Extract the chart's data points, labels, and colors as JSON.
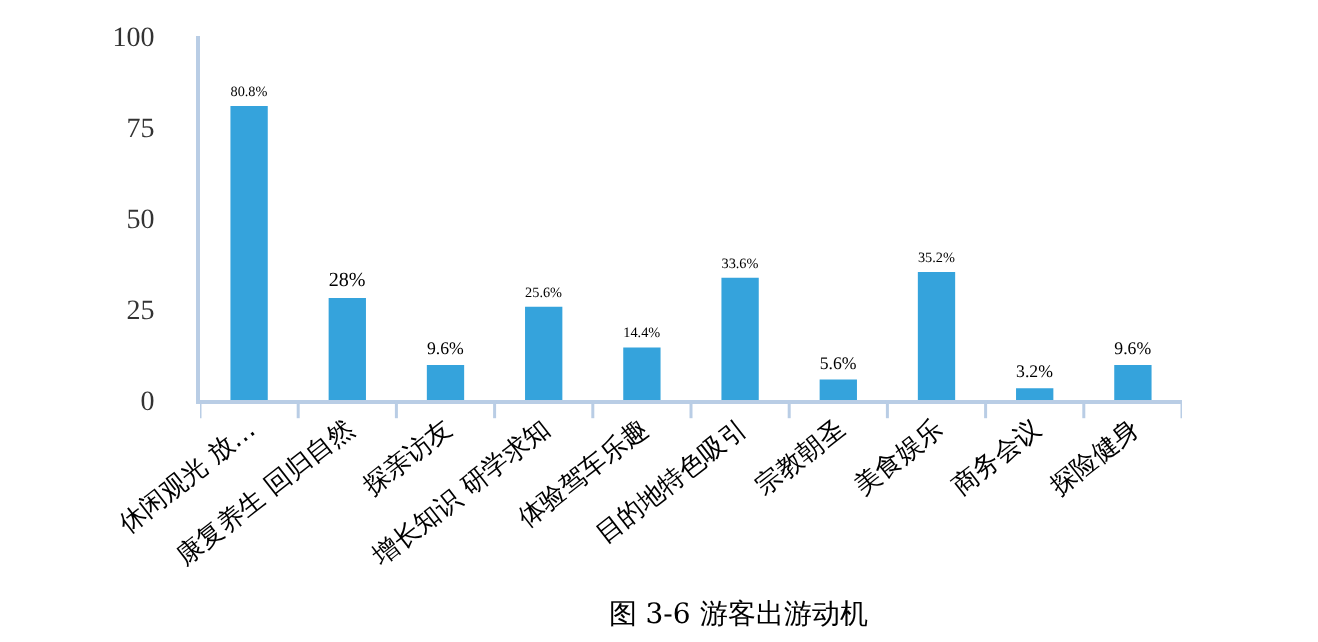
{
  "chart_data": {
    "type": "bar",
    "title": "图 3-6 游客出游动机",
    "categories": [
      "休闲观光 放…",
      "康复养生 回归自然",
      "探亲访友",
      "增长知识 研学求知",
      "体验驾车乐趣",
      "目的地特色吸引",
      "宗教朝圣",
      "美食娱乐",
      "商务会议",
      "探险健身"
    ],
    "values": [
      80.8,
      28,
      9.6,
      25.6,
      14.4,
      33.6,
      5.6,
      35.2,
      3.2,
      9.6
    ],
    "value_labels": [
      "80.8%",
      "28%",
      "9.6%",
      "25.6%",
      "14.4%",
      "33.6%",
      "5.6%",
      "35.2%",
      "3.2%",
      "9.6%"
    ],
    "color": "#35a3dc",
    "ylim": [
      0,
      100
    ],
    "yticks": [
      0,
      25,
      50,
      75,
      100
    ],
    "grid": false,
    "legend": false
  }
}
